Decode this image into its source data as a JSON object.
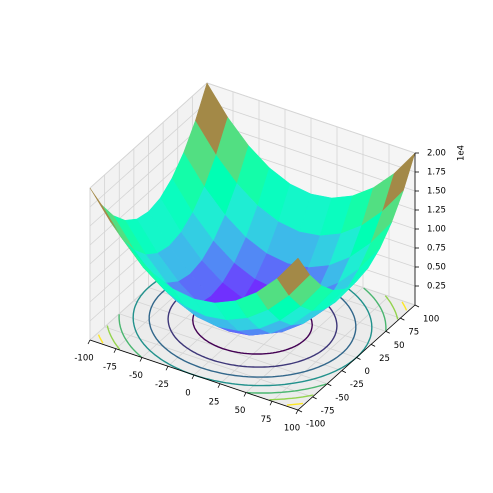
{
  "chart_data": {
    "type": "surface3d",
    "x": [
      -100,
      -80,
      -60,
      -40,
      -20,
      0,
      20,
      40,
      60,
      80,
      100
    ],
    "y": [
      -100,
      -80,
      -60,
      -40,
      -20,
      0,
      20,
      40,
      60,
      80,
      100
    ],
    "z": [
      [
        20000,
        16400,
        13600,
        11600,
        10400,
        10000,
        10400,
        11600,
        13600,
        16400,
        20000
      ],
      [
        16400,
        12800,
        10000,
        8000,
        6800,
        6400,
        6800,
        8000,
        10000,
        12800,
        16400
      ],
      [
        13600,
        10000,
        7200,
        5200,
        4000,
        3600,
        4000,
        5200,
        7200,
        10000,
        13600
      ],
      [
        11600,
        8000,
        5200,
        3200,
        2000,
        1600,
        2000,
        3200,
        5200,
        8000,
        11600
      ],
      [
        10400,
        6800,
        4000,
        2000,
        800,
        400,
        800,
        2000,
        4000,
        6800,
        10400
      ],
      [
        10000,
        6400,
        3600,
        1600,
        400,
        0,
        400,
        1600,
        3600,
        6400,
        10000
      ],
      [
        10400,
        6800,
        4000,
        2000,
        800,
        400,
        800,
        2000,
        4000,
        6800,
        10400
      ],
      [
        11600,
        8000,
        5200,
        3200,
        2000,
        1600,
        2000,
        3200,
        5200,
        8000,
        11600
      ],
      [
        13600,
        10000,
        7200,
        5200,
        4000,
        3600,
        4000,
        5200,
        7200,
        10000,
        13600
      ],
      [
        16400,
        12800,
        10000,
        8000,
        6800,
        6400,
        6800,
        8000,
        10000,
        12800,
        16400
      ],
      [
        20000,
        16400,
        13600,
        11600,
        10400,
        10000,
        10400,
        11600,
        13600,
        16400,
        20000
      ]
    ],
    "cmap": "rainbow",
    "contour_levels": [
      2500,
      5000,
      7500,
      10000,
      12500,
      15000,
      17500
    ],
    "contour_cmap": "viridis",
    "xlim": [
      -100,
      100
    ],
    "ylim": [
      -100,
      100
    ],
    "zlim": [
      0,
      20000
    ],
    "xticks": [
      -100,
      -75,
      -50,
      -25,
      0,
      25,
      50,
      75,
      100
    ],
    "yticks": [
      -100,
      -75,
      -50,
      -25,
      0,
      25,
      50,
      75,
      100
    ],
    "zticks": [
      {
        "value": 2500,
        "label": "0.25"
      },
      {
        "value": 5000,
        "label": "0.50"
      },
      {
        "value": 7500,
        "label": "0.75"
      },
      {
        "value": 10000,
        "label": "1.00"
      },
      {
        "value": 12500,
        "label": "1.25"
      },
      {
        "value": 15000,
        "label": "1.50"
      },
      {
        "value": 17500,
        "label": "1.75"
      },
      {
        "value": 20000,
        "label": "2.00"
      }
    ],
    "z_offset_label": "1e4",
    "grid": true
  }
}
